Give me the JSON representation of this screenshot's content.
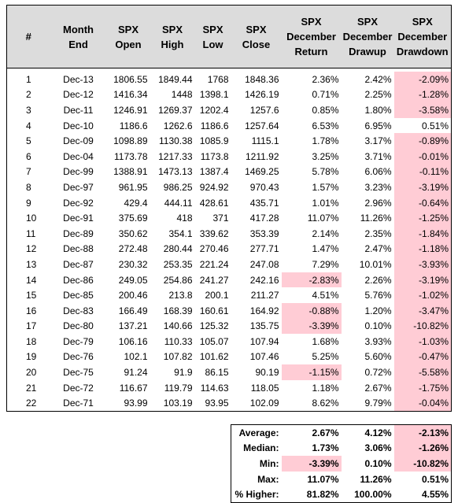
{
  "headers": [
    [
      "#",
      ""
    ],
    [
      "Month",
      "End"
    ],
    [
      "SPX",
      "Open"
    ],
    [
      "SPX",
      "High"
    ],
    [
      "SPX",
      "Low"
    ],
    [
      "SPX",
      "Close"
    ],
    [
      "SPX",
      "December",
      "Return"
    ],
    [
      "SPX",
      "December",
      "Drawup"
    ],
    [
      "SPX",
      "December",
      "Drawdown"
    ]
  ],
  "rows": [
    [
      "1",
      "Dec-13",
      "1806.55",
      "1849.44",
      "1768",
      "1848.36",
      "2.36%",
      "2.42%",
      "-2.09%"
    ],
    [
      "2",
      "Dec-12",
      "1416.34",
      "1448",
      "1398.1",
      "1426.19",
      "0.71%",
      "2.25%",
      "-1.28%"
    ],
    [
      "3",
      "Dec-11",
      "1246.91",
      "1269.37",
      "1202.4",
      "1257.6",
      "0.85%",
      "1.80%",
      "-3.58%"
    ],
    [
      "4",
      "Dec-10",
      "1186.6",
      "1262.6",
      "1186.6",
      "1257.64",
      "6.53%",
      "6.95%",
      "0.51%"
    ],
    [
      "5",
      "Dec-09",
      "1098.89",
      "1130.38",
      "1085.9",
      "1115.1",
      "1.78%",
      "3.17%",
      "-0.89%"
    ],
    [
      "6",
      "Dec-04",
      "1173.78",
      "1217.33",
      "1173.8",
      "1211.92",
      "3.25%",
      "3.71%",
      "-0.01%"
    ],
    [
      "7",
      "Dec-99",
      "1388.91",
      "1473.13",
      "1387.4",
      "1469.25",
      "5.78%",
      "6.06%",
      "-0.11%"
    ],
    [
      "8",
      "Dec-97",
      "961.95",
      "986.25",
      "924.92",
      "970.43",
      "1.57%",
      "3.23%",
      "-3.19%"
    ],
    [
      "9",
      "Dec-92",
      "429.4",
      "444.11",
      "428.61",
      "435.71",
      "1.01%",
      "2.96%",
      "-0.64%"
    ],
    [
      "10",
      "Dec-91",
      "375.69",
      "418",
      "371",
      "417.28",
      "11.07%",
      "11.26%",
      "-1.25%"
    ],
    [
      "11",
      "Dec-89",
      "350.62",
      "354.1",
      "339.62",
      "353.39",
      "2.14%",
      "2.35%",
      "-1.84%"
    ],
    [
      "12",
      "Dec-88",
      "272.48",
      "280.44",
      "270.46",
      "277.71",
      "1.47%",
      "2.47%",
      "-1.18%"
    ],
    [
      "13",
      "Dec-87",
      "230.32",
      "253.35",
      "221.24",
      "247.08",
      "7.29%",
      "10.01%",
      "-3.93%"
    ],
    [
      "14",
      "Dec-86",
      "249.05",
      "254.86",
      "241.27",
      "242.16",
      "-2.83%",
      "2.26%",
      "-3.19%"
    ],
    [
      "15",
      "Dec-85",
      "200.46",
      "213.8",
      "200.1",
      "211.27",
      "4.51%",
      "5.76%",
      "-1.02%"
    ],
    [
      "16",
      "Dec-83",
      "166.49",
      "168.39",
      "160.61",
      "164.92",
      "-0.88%",
      "1.20%",
      "-3.47%"
    ],
    [
      "17",
      "Dec-80",
      "137.21",
      "140.66",
      "125.32",
      "135.75",
      "-3.39%",
      "0.10%",
      "-10.82%"
    ],
    [
      "18",
      "Dec-79",
      "106.16",
      "110.33",
      "105.07",
      "107.94",
      "1.68%",
      "3.93%",
      "-1.03%"
    ],
    [
      "19",
      "Dec-76",
      "102.1",
      "107.82",
      "101.62",
      "107.46",
      "5.25%",
      "5.60%",
      "-0.47%"
    ],
    [
      "20",
      "Dec-75",
      "91.24",
      "91.9",
      "86.15",
      "90.19",
      "-1.15%",
      "0.72%",
      "-5.58%"
    ],
    [
      "21",
      "Dec-72",
      "116.67",
      "119.79",
      "114.63",
      "118.05",
      "1.18%",
      "2.67%",
      "-1.75%"
    ],
    [
      "22",
      "Dec-71",
      "93.99",
      "103.19",
      "93.95",
      "102.09",
      "8.62%",
      "9.79%",
      "-0.04%"
    ]
  ],
  "stats": [
    {
      "label": "Average:",
      "values": [
        "2.67%",
        "4.12%",
        "-2.13%"
      ]
    },
    {
      "label": "Median:",
      "values": [
        "1.73%",
        "3.06%",
        "-1.26%"
      ]
    },
    {
      "label": "Min:",
      "values": [
        "-3.39%",
        "0.10%",
        "-10.82%"
      ]
    },
    {
      "label": "Max:",
      "values": [
        "11.07%",
        "11.26%",
        "0.51%"
      ]
    },
    {
      "label": "% Higher:",
      "values": [
        "81.82%",
        "100.00%",
        "4.55%"
      ]
    }
  ],
  "colors": {
    "header_bg": "#dcdcdc",
    "negative_fill": "#ffccd5",
    "border": "#000000"
  }
}
